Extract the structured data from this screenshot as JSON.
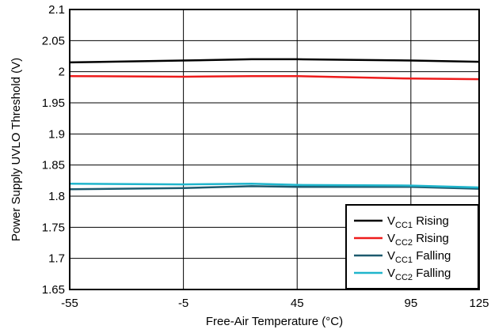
{
  "chart_data": {
    "type": "line",
    "title": "",
    "xlabel": "Free-Air Temperature (°C)",
    "ylabel": "Power Supply UVLO Threshold (V)",
    "xlim": [
      -55,
      125
    ],
    "ylim": [
      1.65,
      2.1
    ],
    "x_ticks": [
      -55,
      -5,
      45,
      95,
      125
    ],
    "x_tick_labels": [
      "-55",
      "-5",
      "45",
      "95",
      "125"
    ],
    "y_ticks": [
      1.65,
      1.7,
      1.75,
      1.8,
      1.85,
      1.9,
      1.95,
      2.0,
      2.05,
      2.1
    ],
    "y_tick_labels": [
      "1.65",
      "1.7",
      "1.75",
      "1.8",
      "1.85",
      "1.9",
      "1.95",
      "2",
      "2.05",
      "2.1"
    ],
    "grid": true,
    "legend_position": "bottom-right",
    "series": [
      {
        "name_main": "V",
        "name_sub": "CC1",
        "name_suffix": " Rising",
        "color": "#000000",
        "x": [
          -55,
          -5,
          25,
          45,
          95,
          125
        ],
        "y": [
          2.015,
          2.018,
          2.02,
          2.02,
          2.018,
          2.016
        ]
      },
      {
        "name_main": "V",
        "name_sub": "CC2",
        "name_suffix": " Rising",
        "color": "#ee1c1c",
        "x": [
          -55,
          -5,
          25,
          45,
          95,
          125
        ],
        "y": [
          1.993,
          1.992,
          1.993,
          1.993,
          1.989,
          1.988
        ]
      },
      {
        "name_main": "V",
        "name_sub": "CC1",
        "name_suffix": " Falling",
        "color": "#1d5a6e",
        "x": [
          -55,
          -5,
          25,
          45,
          95,
          125
        ],
        "y": [
          1.811,
          1.813,
          1.816,
          1.815,
          1.815,
          1.812
        ]
      },
      {
        "name_main": "V",
        "name_sub": "CC2",
        "name_suffix": " Falling",
        "color": "#1fb5cc",
        "x": [
          -55,
          -5,
          25,
          45,
          95,
          125
        ],
        "y": [
          1.82,
          1.819,
          1.82,
          1.818,
          1.817,
          1.814
        ]
      }
    ]
  }
}
